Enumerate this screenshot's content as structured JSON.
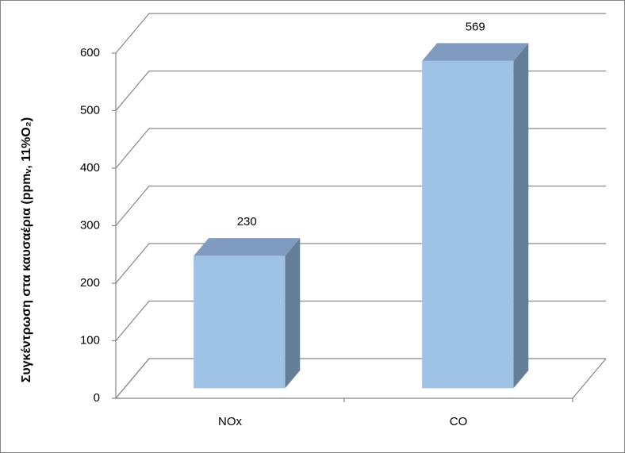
{
  "chart_data": {
    "type": "bar3d",
    "y_label": "Συγκέντρωση στα καυσαέρια (ppmᵥ, 11%O₂)",
    "categories": [
      "NOx",
      "CO"
    ],
    "values": [
      230,
      569
    ],
    "color": "#9fc3e7",
    "ylim": [
      0,
      600
    ],
    "yticks": [
      0,
      100,
      200,
      300,
      400,
      500,
      600
    ],
    "grid": true
  }
}
